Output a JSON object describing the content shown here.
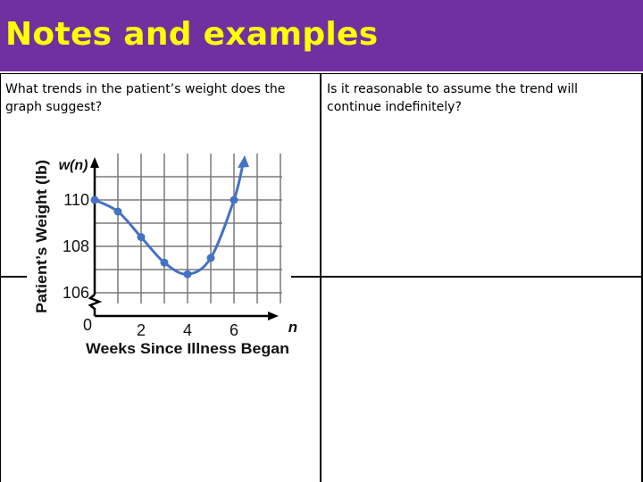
{
  "header": {
    "title": "Notes and examples"
  },
  "cells": {
    "top_left": "What trends in the patient’s weight does the graph suggest?",
    "top_right": "Is it reasonable to assume the trend will continue indefinitely?"
  },
  "colors": {
    "header_bg": "#7030a0",
    "header_text": "#ffff00",
    "curve": "#4472c4"
  },
  "chart_data": {
    "type": "line",
    "xlabel": "Weeks Since Illness Began",
    "ylabel": "Patient’s Weight (lb)",
    "x_axis_name": "n",
    "y_axis_name": "w(n)",
    "x_ticks": [
      2,
      4,
      6
    ],
    "y_ticks": [
      106,
      108,
      110
    ],
    "origin_label": "0",
    "xlim": [
      0,
      7
    ],
    "ylim": [
      105,
      112
    ],
    "y_axis_break": true,
    "grid": true,
    "series": [
      {
        "x": [
          0,
          1,
          2,
          3,
          4,
          5,
          6
        ],
        "y": [
          110,
          109.5,
          108.4,
          107.3,
          106.8,
          107.5,
          110
        ]
      }
    ],
    "curve_continues_upward": true
  }
}
